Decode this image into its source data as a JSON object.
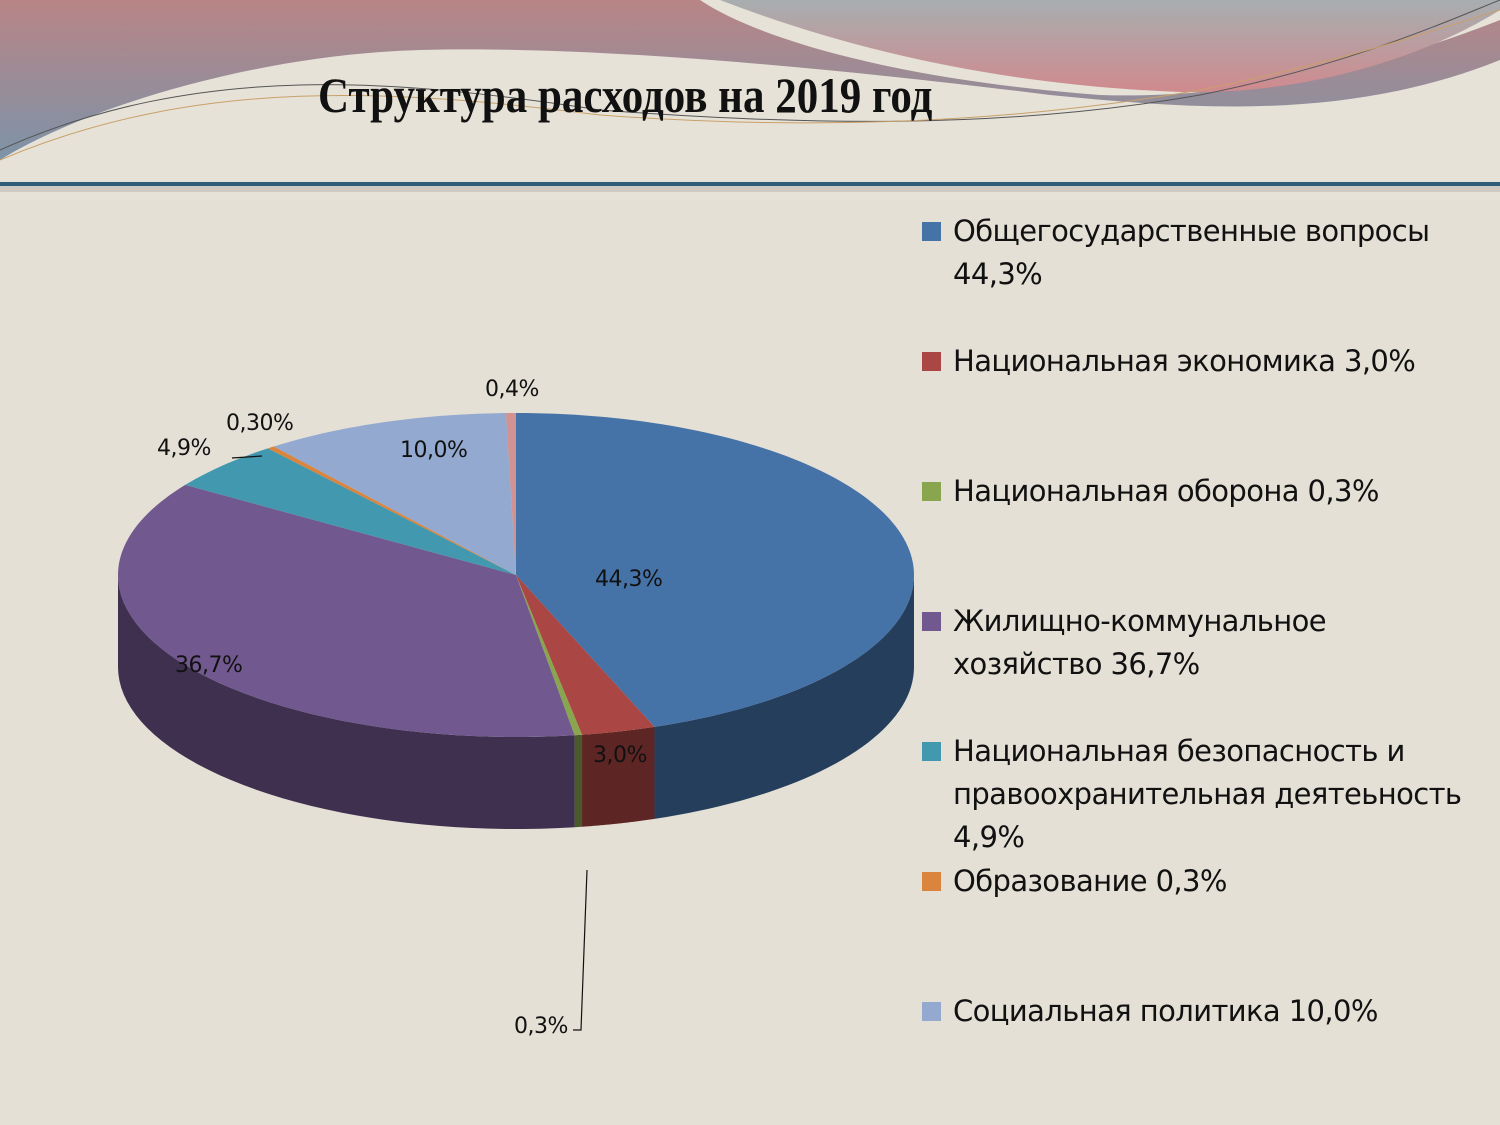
{
  "title": "Структура расходов на 2019  год",
  "chart_data": {
    "type": "pie",
    "style": "3d",
    "title": "Структура расходов на 2019  год",
    "legend_position": "right",
    "slices": [
      {
        "name": "Общегосударственные вопросы",
        "value": 44.3,
        "label": "44,3%",
        "color": "#4572a7"
      },
      {
        "name": "Национальная экономика",
        "value": 3.0,
        "label": "3,0%",
        "color": "#aa4643"
      },
      {
        "name": "Национальная оборона",
        "value": 0.3,
        "label": "0,3%",
        "color": "#89a54e"
      },
      {
        "name": "Жилищно-коммунальное хозяйство",
        "value": 36.7,
        "label": "36,7%",
        "color": "#71588f"
      },
      {
        "name": "Национальная безопасность и правоохранительная деятеьность",
        "value": 4.9,
        "label": "4,9%",
        "color": "#4198af"
      },
      {
        "name": "Образование",
        "value": 0.3,
        "label": "0,30%",
        "color": "#db843d"
      },
      {
        "name": "Социальная политика",
        "value": 10.0,
        "label": "10,0%",
        "color": "#93a9cf"
      },
      {
        "name": "",
        "value": 0.4,
        "label": "0,4%",
        "color": "#d19392"
      }
    ]
  },
  "legend": [
    {
      "lines": [
        "Общегосударственные вопросы",
        "44,3%"
      ],
      "color": "#4572a7"
    },
    {
      "lines": [
        "Национальная экономика 3,0%"
      ],
      "color": "#aa4643"
    },
    {
      "lines": [
        "Национальная оборона 0,3%"
      ],
      "color": "#89a54e"
    },
    {
      "lines": [
        "Жилищно-коммунальное",
        "хозяйство 36,7%"
      ],
      "color": "#71588f"
    },
    {
      "lines": [
        "Национальная безопасность и",
        "правоохранительная деятеьность",
        "4,9%"
      ],
      "color": "#4198af"
    },
    {
      "lines": [
        "Образование 0,3%"
      ],
      "color": "#db843d"
    },
    {
      "lines": [
        "Социальная политика 10,0%"
      ],
      "color": "#93a9cf"
    }
  ]
}
